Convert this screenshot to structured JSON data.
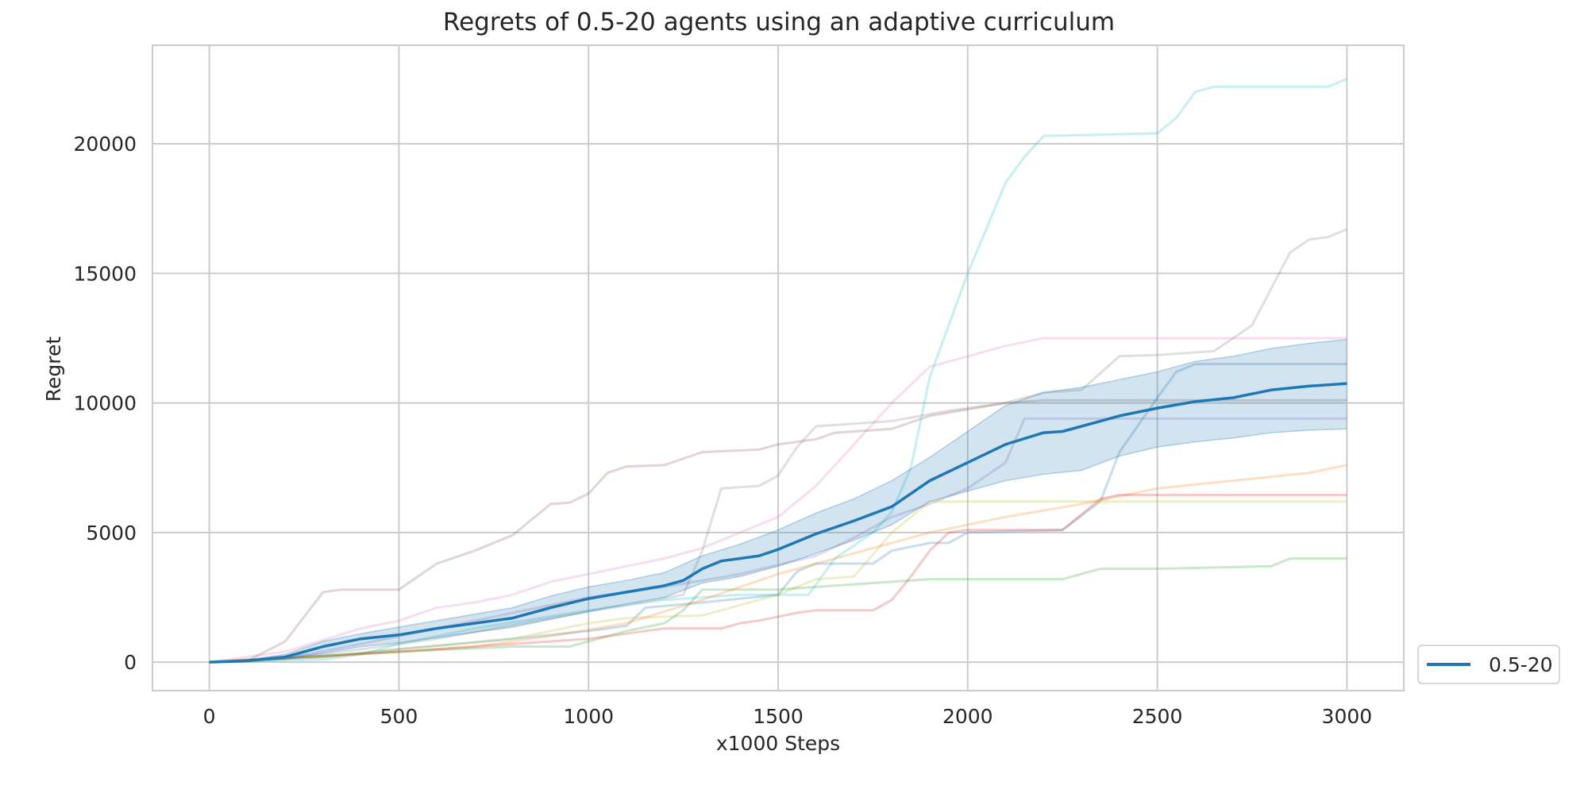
{
  "chart_data": {
    "type": "line",
    "title": "Regrets of 0.5-20 agents using an adaptive curriculum",
    "xlabel": "x1000 Steps",
    "ylabel": "Regret",
    "xlim": [
      -150,
      3150
    ],
    "ylim": [
      -1100,
      23800
    ],
    "x_ticks": [
      0,
      500,
      1000,
      1500,
      2000,
      2500,
      3000
    ],
    "y_ticks": [
      0,
      5000,
      10000,
      15000,
      20000
    ],
    "x_tick_labels": [
      "0",
      "500",
      "1000",
      "1500",
      "2000",
      "2500",
      "3000"
    ],
    "y_tick_labels": [
      "0",
      "5000",
      "10000",
      "15000",
      "20000"
    ],
    "grid": true,
    "legend": {
      "placement": "outside-lower-right",
      "entries": [
        {
          "label": "0.5-20",
          "color": "#1f77b4"
        }
      ]
    },
    "mean_series": {
      "name": "0.5-20",
      "color": "#1f77b4",
      "points": [
        [
          0,
          0
        ],
        [
          100,
          50
        ],
        [
          200,
          200
        ],
        [
          300,
          600
        ],
        [
          400,
          900
        ],
        [
          500,
          1050
        ],
        [
          600,
          1300
        ],
        [
          700,
          1500
        ],
        [
          800,
          1700
        ],
        [
          900,
          2100
        ],
        [
          1000,
          2450
        ],
        [
          1100,
          2700
        ],
        [
          1200,
          2950
        ],
        [
          1250,
          3150
        ],
        [
          1300,
          3600
        ],
        [
          1350,
          3900
        ],
        [
          1400,
          4000
        ],
        [
          1450,
          4100
        ],
        [
          1500,
          4350
        ],
        [
          1600,
          4950
        ],
        [
          1700,
          5450
        ],
        [
          1800,
          6000
        ],
        [
          1900,
          7000
        ],
        [
          2000,
          7700
        ],
        [
          2100,
          8400
        ],
        [
          2200,
          8850
        ],
        [
          2250,
          8900
        ],
        [
          2300,
          9100
        ],
        [
          2400,
          9500
        ],
        [
          2500,
          9800
        ],
        [
          2600,
          10050
        ],
        [
          2700,
          10200
        ],
        [
          2800,
          10500
        ],
        [
          2900,
          10650
        ],
        [
          3000,
          10750
        ]
      ]
    },
    "confidence_band": {
      "upper": [
        [
          0,
          0
        ],
        [
          100,
          80
        ],
        [
          200,
          300
        ],
        [
          300,
          800
        ],
        [
          400,
          1100
        ],
        [
          500,
          1350
        ],
        [
          600,
          1600
        ],
        [
          700,
          1850
        ],
        [
          800,
          2100
        ],
        [
          900,
          2550
        ],
        [
          1000,
          2900
        ],
        [
          1100,
          3150
        ],
        [
          1200,
          3450
        ],
        [
          1300,
          4100
        ],
        [
          1400,
          4550
        ],
        [
          1500,
          5100
        ],
        [
          1600,
          5750
        ],
        [
          1700,
          6300
        ],
        [
          1800,
          7000
        ],
        [
          1900,
          7900
        ],
        [
          2000,
          8900
        ],
        [
          2100,
          9900
        ],
        [
          2200,
          10400
        ],
        [
          2300,
          10600
        ],
        [
          2400,
          10900
        ],
        [
          2500,
          11200
        ],
        [
          2600,
          11600
        ],
        [
          2700,
          11800
        ],
        [
          2800,
          12100
        ],
        [
          2900,
          12300
        ],
        [
          3000,
          12450
        ]
      ],
      "lower": [
        [
          0,
          0
        ],
        [
          100,
          20
        ],
        [
          200,
          100
        ],
        [
          300,
          350
        ],
        [
          400,
          600
        ],
        [
          500,
          750
        ],
        [
          600,
          950
        ],
        [
          700,
          1150
        ],
        [
          800,
          1350
        ],
        [
          900,
          1650
        ],
        [
          1000,
          1950
        ],
        [
          1100,
          2250
        ],
        [
          1200,
          2500
        ],
        [
          1300,
          3050
        ],
        [
          1400,
          3300
        ],
        [
          1500,
          3700
        ],
        [
          1600,
          4200
        ],
        [
          1700,
          4700
        ],
        [
          1800,
          5300
        ],
        [
          1900,
          6200
        ],
        [
          2000,
          6600
        ],
        [
          2100,
          7000
        ],
        [
          2200,
          7250
        ],
        [
          2300,
          7400
        ],
        [
          2400,
          7950
        ],
        [
          2500,
          8300
        ],
        [
          2600,
          8500
        ],
        [
          2700,
          8650
        ],
        [
          2800,
          8850
        ],
        [
          2900,
          8950
        ],
        [
          3000,
          9000
        ]
      ]
    },
    "individual_runs": [
      {
        "color": "#8c564b",
        "points": [
          [
            0,
            0
          ],
          [
            100,
            50
          ],
          [
            200,
            800
          ],
          [
            300,
            2700
          ],
          [
            350,
            2800
          ],
          [
            500,
            2800
          ],
          [
            600,
            3800
          ],
          [
            700,
            4300
          ],
          [
            800,
            4900
          ],
          [
            900,
            6100
          ],
          [
            950,
            6150
          ],
          [
            1000,
            6500
          ],
          [
            1050,
            7300
          ],
          [
            1100,
            7550
          ],
          [
            1200,
            7600
          ],
          [
            1300,
            8100
          ],
          [
            1450,
            8200
          ],
          [
            1500,
            8400
          ],
          [
            1600,
            8600
          ],
          [
            1650,
            8850
          ],
          [
            1800,
            9000
          ],
          [
            1900,
            9500
          ],
          [
            2100,
            10000
          ],
          [
            2200,
            10100
          ],
          [
            3000,
            10100
          ]
        ]
      },
      {
        "color": "#17becf",
        "points": [
          [
            0,
            0
          ],
          [
            300,
            100
          ],
          [
            400,
            300
          ],
          [
            500,
            700
          ],
          [
            700,
            1300
          ],
          [
            1000,
            2000
          ],
          [
            1200,
            2400
          ],
          [
            1400,
            2600
          ],
          [
            1500,
            2600
          ],
          [
            1580,
            2600
          ],
          [
            1650,
            4000
          ],
          [
            1750,
            5000
          ],
          [
            1800,
            5800
          ],
          [
            1850,
            7500
          ],
          [
            1900,
            11000
          ],
          [
            2000,
            15000
          ],
          [
            2100,
            18500
          ],
          [
            2150,
            19500
          ],
          [
            2200,
            20300
          ],
          [
            2500,
            20400
          ],
          [
            2550,
            21000
          ],
          [
            2600,
            22000
          ],
          [
            2650,
            22200
          ],
          [
            2950,
            22200
          ],
          [
            3000,
            22500
          ]
        ]
      },
      {
        "color": "#7f7f7f",
        "points": [
          [
            0,
            0
          ],
          [
            300,
            300
          ],
          [
            600,
            900
          ],
          [
            900,
            1700
          ],
          [
            1100,
            2200
          ],
          [
            1250,
            2600
          ],
          [
            1300,
            4300
          ],
          [
            1350,
            6700
          ],
          [
            1400,
            6750
          ],
          [
            1450,
            6800
          ],
          [
            1500,
            7200
          ],
          [
            1550,
            8300
          ],
          [
            1600,
            9100
          ],
          [
            1700,
            9200
          ],
          [
            1800,
            9300
          ],
          [
            1950,
            9700
          ],
          [
            2100,
            10000
          ],
          [
            2200,
            10400
          ],
          [
            2300,
            10500
          ],
          [
            2400,
            11800
          ],
          [
            2500,
            11850
          ],
          [
            2650,
            12000
          ],
          [
            2750,
            13000
          ],
          [
            2850,
            15800
          ],
          [
            2900,
            16300
          ],
          [
            2950,
            16400
          ],
          [
            3000,
            16700
          ]
        ]
      },
      {
        "color": "#e377c2",
        "points": [
          [
            0,
            0
          ],
          [
            200,
            400
          ],
          [
            400,
            1300
          ],
          [
            500,
            1600
          ],
          [
            600,
            2100
          ],
          [
            700,
            2300
          ],
          [
            800,
            2600
          ],
          [
            900,
            3100
          ],
          [
            1000,
            3400
          ],
          [
            1100,
            3700
          ],
          [
            1200,
            4000
          ],
          [
            1300,
            4400
          ],
          [
            1400,
            5000
          ],
          [
            1500,
            5600
          ],
          [
            1600,
            6800
          ],
          [
            1700,
            8400
          ],
          [
            1800,
            10000
          ],
          [
            1900,
            11400
          ],
          [
            2000,
            11800
          ],
          [
            2100,
            12200
          ],
          [
            2200,
            12500
          ],
          [
            3000,
            12500
          ]
        ]
      },
      {
        "color": "#9467bd",
        "points": [
          [
            0,
            0
          ],
          [
            200,
            150
          ],
          [
            400,
            700
          ],
          [
            600,
            1300
          ],
          [
            800,
            1900
          ],
          [
            1000,
            2500
          ],
          [
            1200,
            2900
          ],
          [
            1400,
            3400
          ],
          [
            1600,
            4100
          ],
          [
            1700,
            4800
          ],
          [
            1800,
            5600
          ],
          [
            1900,
            6100
          ],
          [
            2000,
            6700
          ],
          [
            2100,
            7700
          ],
          [
            2150,
            9400
          ],
          [
            3000,
            9400
          ]
        ]
      },
      {
        "color": "#1f77b4",
        "points": [
          [
            0,
            0
          ],
          [
            300,
            200
          ],
          [
            500,
            500
          ],
          [
            800,
            900
          ],
          [
            1000,
            1200
          ],
          [
            1100,
            1400
          ],
          [
            1150,
            2100
          ],
          [
            1300,
            2300
          ],
          [
            1500,
            2600
          ],
          [
            1550,
            3500
          ],
          [
            1600,
            3800
          ],
          [
            1700,
            3800
          ],
          [
            1750,
            3800
          ],
          [
            1800,
            4300
          ],
          [
            1900,
            4600
          ],
          [
            1950,
            4600
          ],
          [
            2000,
            5000
          ],
          [
            2250,
            5100
          ],
          [
            2350,
            6200
          ],
          [
            2400,
            8100
          ],
          [
            2500,
            10200
          ],
          [
            2550,
            11200
          ],
          [
            2600,
            11500
          ],
          [
            3000,
            11500
          ]
        ]
      },
      {
        "color": "#bcbd22",
        "points": [
          [
            0,
            0
          ],
          [
            300,
            200
          ],
          [
            500,
            500
          ],
          [
            800,
            900
          ],
          [
            1000,
            1500
          ],
          [
            1100,
            1700
          ],
          [
            1300,
            1800
          ],
          [
            1500,
            2600
          ],
          [
            1600,
            3200
          ],
          [
            1700,
            3300
          ],
          [
            1800,
            5000
          ],
          [
            1850,
            5600
          ],
          [
            1900,
            6200
          ],
          [
            3000,
            6200
          ]
        ]
      },
      {
        "color": "#ff7f0e",
        "points": [
          [
            0,
            0
          ],
          [
            400,
            300
          ],
          [
            700,
            600
          ],
          [
            900,
            1000
          ],
          [
            1100,
            1500
          ],
          [
            1300,
            2400
          ],
          [
            1500,
            3400
          ],
          [
            1700,
            4200
          ],
          [
            1900,
            5000
          ],
          [
            2100,
            5600
          ],
          [
            2300,
            6100
          ],
          [
            2500,
            6700
          ],
          [
            2700,
            7000
          ],
          [
            2900,
            7300
          ],
          [
            3000,
            7600
          ]
        ]
      },
      {
        "color": "#d62728",
        "points": [
          [
            0,
            0
          ],
          [
            500,
            400
          ],
          [
            800,
            700
          ],
          [
            1000,
            900
          ],
          [
            1100,
            1100
          ],
          [
            1200,
            1300
          ],
          [
            1350,
            1300
          ],
          [
            1400,
            1500
          ],
          [
            1450,
            1600
          ],
          [
            1550,
            1900
          ],
          [
            1600,
            2000
          ],
          [
            1750,
            2000
          ],
          [
            1800,
            2400
          ],
          [
            1850,
            3300
          ],
          [
            1900,
            4300
          ],
          [
            1950,
            5000
          ],
          [
            2000,
            5100
          ],
          [
            2250,
            5100
          ],
          [
            2350,
            6300
          ],
          [
            2400,
            6450
          ],
          [
            3000,
            6450
          ]
        ]
      },
      {
        "color": "#2ca02c",
        "points": [
          [
            0,
            0
          ],
          [
            500,
            400
          ],
          [
            800,
            600
          ],
          [
            950,
            600
          ],
          [
            1000,
            800
          ],
          [
            1100,
            1200
          ],
          [
            1200,
            1500
          ],
          [
            1250,
            2000
          ],
          [
            1300,
            2800
          ],
          [
            1500,
            2800
          ],
          [
            1600,
            2900
          ],
          [
            1800,
            3100
          ],
          [
            1900,
            3200
          ],
          [
            2250,
            3200
          ],
          [
            2350,
            3600
          ],
          [
            2500,
            3600
          ],
          [
            2800,
            3700
          ],
          [
            2850,
            4000
          ],
          [
            3000,
            4000
          ]
        ]
      }
    ]
  }
}
